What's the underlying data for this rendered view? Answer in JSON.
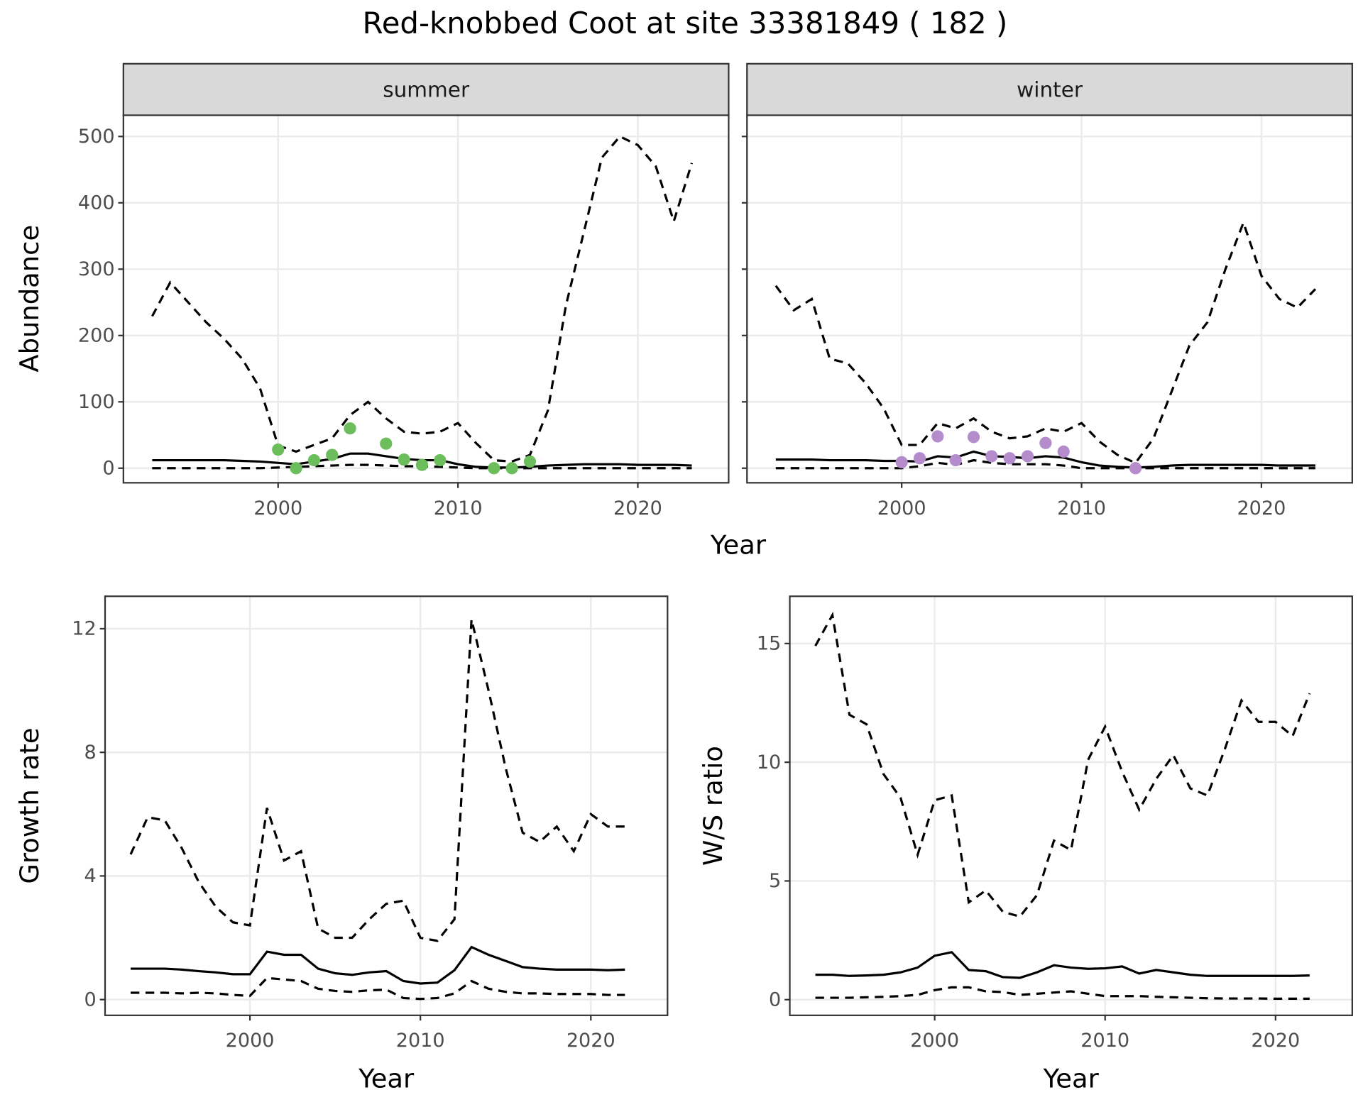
{
  "title": "Red-knobbed Coot at site 33381849 ( 182 )",
  "chart_data": [
    {
      "type": "line",
      "facet": "summer",
      "ylabel": "Abundance",
      "xlabel": "Year",
      "x": [
        1993,
        1994,
        1995,
        1996,
        1997,
        1998,
        1999,
        2000,
        2001,
        2002,
        2003,
        2004,
        2005,
        2006,
        2007,
        2008,
        2009,
        2010,
        2011,
        2012,
        2013,
        2014,
        2015,
        2016,
        2017,
        2018,
        2019,
        2020,
        2021,
        2022,
        2023
      ],
      "xlim": [
        1991.4,
        2025.05
      ],
      "xticks": [
        2000,
        2010,
        2020
      ],
      "ylim": [
        -22,
        532
      ],
      "yticks": [
        0,
        100,
        200,
        300,
        400,
        500
      ],
      "grid": true,
      "series": [
        {
          "color": "#000000",
          "dashed": true,
          "values": [
            229,
            280,
            250,
            220,
            195,
            165,
            120,
            34,
            25,
            35,
            45,
            80,
            100,
            75,
            55,
            52,
            55,
            68,
            38,
            12,
            10,
            20,
            87,
            245,
            356,
            468,
            500,
            487,
            455,
            372,
            460
          ]
        },
        {
          "color": "#000000",
          "dashed": false,
          "values": [
            12,
            12,
            12,
            12,
            12,
            11,
            10,
            8,
            6,
            10,
            14,
            22,
            22,
            18,
            14,
            12,
            12,
            6,
            2,
            1,
            1,
            2,
            4,
            5,
            6,
            6,
            6,
            5,
            5,
            5,
            4
          ]
        },
        {
          "color": "#000000",
          "dashed": true,
          "values": [
            0,
            0,
            0,
            0,
            0,
            0,
            0,
            1,
            2,
            3,
            4,
            5,
            5,
            4,
            3,
            3,
            2,
            1,
            0,
            0,
            0,
            0,
            0,
            0,
            0,
            0,
            0,
            0,
            0,
            0,
            0
          ]
        },
        {
          "color": "#6cbd5c",
          "points": true,
          "values": [
            null,
            null,
            null,
            null,
            null,
            null,
            null,
            28,
            0,
            12,
            20,
            60,
            null,
            37,
            13,
            5,
            12,
            null,
            null,
            0,
            0,
            10,
            null,
            null,
            null,
            null,
            null,
            null,
            null,
            null,
            null
          ]
        }
      ]
    },
    {
      "type": "line",
      "facet": "winter",
      "x": [
        1993,
        1994,
        1995,
        1996,
        1997,
        1998,
        1999,
        2000,
        2001,
        2002,
        2003,
        2004,
        2005,
        2006,
        2007,
        2008,
        2009,
        2010,
        2011,
        2012,
        2013,
        2014,
        2015,
        2016,
        2017,
        2018,
        2019,
        2020,
        2021,
        2022,
        2023
      ],
      "xlim": [
        1991.4,
        2025.05
      ],
      "xticks": [
        2000,
        2010,
        2020
      ],
      "ylim": [
        -22,
        532
      ],
      "yticks": [
        0,
        100,
        200,
        300,
        400,
        500
      ],
      "grid": true,
      "series": [
        {
          "color": "#000000",
          "dashed": true,
          "values": [
            275,
            238,
            255,
            165,
            158,
            128,
            90,
            35,
            35,
            68,
            60,
            75,
            55,
            45,
            48,
            60,
            55,
            68,
            40,
            20,
            8,
            45,
            115,
            185,
            220,
            300,
            370,
            290,
            255,
            242,
            270
          ]
        },
        {
          "color": "#000000",
          "dashed": false,
          "values": [
            13,
            13,
            13,
            12,
            12,
            12,
            11,
            11,
            10,
            18,
            16,
            25,
            18,
            17,
            15,
            18,
            16,
            9,
            4,
            2,
            1,
            2,
            4,
            5,
            5,
            5,
            5,
            5,
            4,
            4,
            4
          ]
        },
        {
          "color": "#000000",
          "dashed": true,
          "values": [
            0,
            0,
            0,
            0,
            0,
            0,
            0,
            0,
            3,
            8,
            5,
            12,
            8,
            6,
            6,
            6,
            4,
            0,
            0,
            0,
            0,
            0,
            0,
            0,
            0,
            0,
            0,
            0,
            0,
            0,
            0
          ]
        },
        {
          "color": "#b48ccc",
          "points": true,
          "values": [
            null,
            null,
            null,
            null,
            null,
            null,
            null,
            9,
            15,
            48,
            12,
            47,
            18,
            15,
            18,
            38,
            25,
            null,
            null,
            null,
            0,
            null,
            null,
            null,
            null,
            null,
            null,
            null,
            null,
            null,
            null
          ]
        }
      ]
    },
    {
      "type": "line",
      "ylabel": "Growth rate",
      "xlabel": "Year",
      "x": [
        1993,
        1994,
        1995,
        1996,
        1997,
        1998,
        1999,
        2000,
        2001,
        2002,
        2003,
        2004,
        2005,
        2006,
        2007,
        2008,
        2009,
        2010,
        2011,
        2012,
        2013,
        2014,
        2015,
        2016,
        2017,
        2018,
        2019,
        2020,
        2021,
        2022
      ],
      "xlim": [
        1991.5,
        2024.5
      ],
      "xticks": [
        2000,
        2010,
        2020
      ],
      "ylim": [
        -0.51,
        13.05
      ],
      "yticks": [
        0,
        4,
        8,
        12
      ],
      "grid": true,
      "series": [
        {
          "color": "#000000",
          "dashed": true,
          "values": [
            4.7,
            5.9,
            5.8,
            4.9,
            3.8,
            3.0,
            2.5,
            2.4,
            6.2,
            4.5,
            4.8,
            2.3,
            2.0,
            2.0,
            2.6,
            3.1,
            3.2,
            2.0,
            1.9,
            2.6,
            12.3,
            10.0,
            7.5,
            5.4,
            5.1,
            5.6,
            4.8,
            6.0,
            5.6,
            5.6
          ]
        },
        {
          "color": "#000000",
          "dashed": false,
          "values": [
            1.0,
            1.0,
            1.0,
            0.97,
            0.92,
            0.88,
            0.82,
            0.82,
            1.55,
            1.45,
            1.45,
            1.0,
            0.85,
            0.8,
            0.88,
            0.92,
            0.6,
            0.52,
            0.55,
            0.95,
            1.7,
            1.45,
            1.25,
            1.05,
            1.0,
            0.97,
            0.97,
            0.97,
            0.95,
            0.97
          ]
        },
        {
          "color": "#000000",
          "dashed": true,
          "values": [
            0.22,
            0.22,
            0.22,
            0.2,
            0.22,
            0.2,
            0.15,
            0.12,
            0.7,
            0.65,
            0.6,
            0.35,
            0.28,
            0.25,
            0.3,
            0.32,
            0.05,
            0.02,
            0.05,
            0.2,
            0.6,
            0.35,
            0.25,
            0.2,
            0.2,
            0.18,
            0.18,
            0.18,
            0.15,
            0.15
          ]
        }
      ]
    },
    {
      "type": "line",
      "ylabel": "W/S ratio",
      "xlabel": "Year",
      "x": [
        1993,
        1994,
        1995,
        1996,
        1997,
        1998,
        1999,
        2000,
        2001,
        2002,
        2003,
        2004,
        2005,
        2006,
        2007,
        2008,
        2009,
        2010,
        2011,
        2012,
        2013,
        2014,
        2015,
        2016,
        2017,
        2018,
        2019,
        2020,
        2021,
        2022
      ],
      "xlim": [
        1991.5,
        2024.5
      ],
      "xticks": [
        2000,
        2010,
        2020
      ],
      "ylim": [
        -0.66,
        16.99
      ],
      "yticks": [
        0,
        5,
        10,
        15
      ],
      "grid": true,
      "series": [
        {
          "color": "#000000",
          "dashed": true,
          "values": [
            14.9,
            16.2,
            12.0,
            11.6,
            9.5,
            8.5,
            6.1,
            8.4,
            8.6,
            4.1,
            4.6,
            3.7,
            3.5,
            4.4,
            6.7,
            6.3,
            10.1,
            11.5,
            9.6,
            8.0,
            9.3,
            10.3,
            8.9,
            8.6,
            10.5,
            12.6,
            11.7,
            11.7,
            11.1,
            12.9
          ]
        },
        {
          "color": "#000000",
          "dashed": false,
          "values": [
            1.05,
            1.05,
            1.0,
            1.02,
            1.05,
            1.15,
            1.35,
            1.85,
            2.0,
            1.25,
            1.2,
            0.95,
            0.92,
            1.15,
            1.45,
            1.35,
            1.3,
            1.32,
            1.4,
            1.1,
            1.25,
            1.15,
            1.05,
            1.0,
            1.0,
            1.0,
            1.0,
            1.0,
            1.0,
            1.02
          ]
        },
        {
          "color": "#000000",
          "dashed": true,
          "values": [
            0.08,
            0.08,
            0.08,
            0.1,
            0.12,
            0.15,
            0.2,
            0.4,
            0.52,
            0.52,
            0.35,
            0.32,
            0.2,
            0.25,
            0.3,
            0.35,
            0.25,
            0.15,
            0.15,
            0.15,
            0.12,
            0.1,
            0.08,
            0.06,
            0.05,
            0.05,
            0.05,
            0.04,
            0.04,
            0.04
          ]
        }
      ]
    }
  ]
}
